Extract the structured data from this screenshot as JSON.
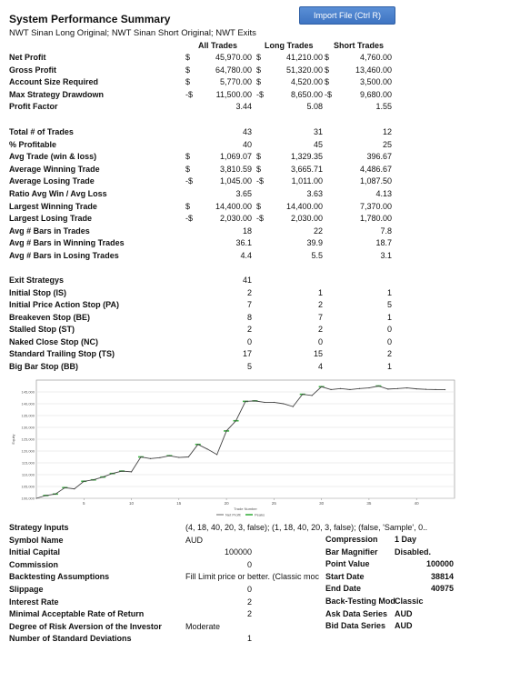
{
  "report": {
    "title": "System Performance Summary",
    "subtitle": "NWT Sinan Long Original; NWT Sinan Short Original; NWT Exits",
    "import_button": "Import  File (Ctrl R)"
  },
  "columns": [
    "All Trades",
    "Long Trades",
    "Short Trades"
  ],
  "summary_rows": [
    {
      "label": "Net Profit",
      "cur": [
        "$",
        "$",
        "$"
      ],
      "all": "45,970.00",
      "long": "41,210.00",
      "short": "4,760.00"
    },
    {
      "label": "Gross Profit",
      "cur": [
        "$",
        "$",
        "$"
      ],
      "all": "64,780.00",
      "long": "51,320.00",
      "short": "13,460.00"
    },
    {
      "label": "Account Size Required",
      "cur": [
        "$",
        "$",
        "$"
      ],
      "all": "5,770.00",
      "long": "4,520.00",
      "short": "3,500.00"
    },
    {
      "label": "Max Strategy Drawdown",
      "cur": [
        "-$",
        "-$",
        "-$"
      ],
      "all": "11,500.00",
      "long": "8,650.00",
      "short": "9,680.00"
    },
    {
      "label": "Profit Factor",
      "cur": [
        "",
        "",
        ""
      ],
      "all": "3.44",
      "long": "5.08",
      "short": "1.55"
    }
  ],
  "trade_rows": [
    {
      "label": "Total # of Trades",
      "cur": [
        "",
        "",
        ""
      ],
      "all": "43",
      "long": "31",
      "short": "12"
    },
    {
      "label": "% Profitable",
      "cur": [
        "",
        "",
        ""
      ],
      "all": "40",
      "long": "45",
      "short": "25"
    },
    {
      "label": "Avg Trade (win & loss)",
      "cur": [
        "$",
        "$",
        ""
      ],
      "all": "1,069.07",
      "long": "1,329.35",
      "short": "396.67"
    },
    {
      "label": "Average Winning Trade",
      "cur": [
        "$",
        "$",
        ""
      ],
      "all": "3,810.59",
      "long": "3,665.71",
      "short": "4,486.67"
    },
    {
      "label": "Average Losing Trade",
      "cur": [
        "-$",
        "-$",
        ""
      ],
      "all": "1,045.00",
      "long": "1,011.00",
      "short": "1,087.50"
    },
    {
      "label": "Ratio Avg Win / Avg Loss",
      "cur": [
        "",
        "",
        ""
      ],
      "all": "3.65",
      "long": "3.63",
      "short": "4.13"
    },
    {
      "label": "Largest Winning Trade",
      "cur": [
        "$",
        "$",
        ""
      ],
      "all": "14,400.00",
      "long": "14,400.00",
      "short": "7,370.00"
    },
    {
      "label": "Largest Losing Trade",
      "cur": [
        "-$",
        "-$",
        ""
      ],
      "all": "2,030.00",
      "long": "2,030.00",
      "short": "1,780.00"
    },
    {
      "label": "Avg # Bars in Trades",
      "cur": [
        "",
        "",
        ""
      ],
      "all": "18",
      "long": "22",
      "short": "7.8"
    },
    {
      "label": "Avg # Bars in Winning Trades",
      "cur": [
        "",
        "",
        ""
      ],
      "all": "36.1",
      "long": "39.9",
      "short": "18.7"
    },
    {
      "label": "Avg # Bars in Losing Trades",
      "cur": [
        "",
        "",
        ""
      ],
      "all": "4.4",
      "long": "5.5",
      "short": "3.1"
    }
  ],
  "exit_rows": [
    {
      "label": "Exit Strategys",
      "all": "41",
      "long": "",
      "short": ""
    },
    {
      "label": "Initial Stop (IS)",
      "all": "2",
      "long": "1",
      "short": "1"
    },
    {
      "label": "Initial Price Action Stop (PA)",
      "all": "7",
      "long": "2",
      "short": "5"
    },
    {
      "label": "Breakeven Stop (BE)",
      "all": "8",
      "long": "7",
      "short": "1"
    },
    {
      "label": "Stalled Stop (ST)",
      "all": "2",
      "long": "2",
      "short": "0"
    },
    {
      "label": "Naked Close Stop (NC)",
      "all": "0",
      "long": "0",
      "short": "0"
    },
    {
      "label": "Standard Trailing Stop (TS)",
      "all": "17",
      "long": "15",
      "short": "2"
    },
    {
      "label": "Big Bar Stop (BB)",
      "all": "5",
      "long": "4",
      "short": "1"
    }
  ],
  "chart_data": {
    "type": "line",
    "xlabel": "Trade Number",
    "ylabel": "Equity",
    "xlim": [
      0,
      44
    ],
    "ylim": [
      100000,
      150000
    ],
    "x_ticks": [
      5,
      10,
      15,
      20,
      25,
      30,
      35,
      40
    ],
    "y_ticks": [
      100000,
      105000,
      110000,
      115000,
      120000,
      125000,
      130000,
      135000,
      140000,
      145000
    ],
    "y_tick_labels": [
      "100,000",
      "105,000",
      "110,000",
      "115,000",
      "120,000",
      "125,000",
      "130,000",
      "135,000",
      "140,000",
      "145,000"
    ],
    "series": [
      {
        "name": "Net Profit",
        "values": [
          100000,
          101200,
          101800,
          104500,
          104000,
          107200,
          107800,
          109000,
          110500,
          111500,
          111200,
          117500,
          116800,
          117200,
          118000,
          117300,
          117500,
          122800,
          120800,
          118500,
          128500,
          132800,
          141000,
          141200,
          140600,
          140600,
          140000,
          138800,
          144000,
          143500,
          147200,
          146000,
          146400,
          146000,
          146400,
          146700,
          147500,
          146200,
          146400,
          146700,
          146300,
          146100,
          146000,
          145970
        ]
      },
      {
        "name": "Peaks",
        "values": [
          100000,
          101200,
          101800,
          104500,
          104500,
          107200,
          107800,
          109000,
          110500,
          111500,
          111500,
          117500,
          117500,
          117500,
          118000,
          118000,
          118000,
          122800,
          122800,
          122800,
          128500,
          132800,
          141000,
          141200,
          141200,
          141200,
          141200,
          141200,
          144000,
          144000,
          147200,
          147200,
          147200,
          147200,
          147200,
          147200,
          147500,
          147500,
          147500,
          147500,
          147500,
          147500,
          147500,
          147500
        ]
      }
    ],
    "legend": [
      "Net Profit",
      "Peaks"
    ],
    "legend_position": "bottom",
    "colors": {
      "line": "#444444",
      "peaks": "#3cb043",
      "grid": "#dddddd"
    }
  },
  "inputs_left": [
    {
      "label": "Strategy Inputs",
      "value": "(4, 18, 40, 20, 3, false); (1, 18, 40, 20, 3, false); (false, 'Sample', 0.."
    },
    {
      "label": "Symbol Name",
      "value": "AUD"
    },
    {
      "label": "Initial Capital",
      "value": "100000"
    },
    {
      "label": "Commission",
      "value": "0"
    },
    {
      "label": "Backtesting Assumptions",
      "value": "Fill Limit price or better. (Classic moc"
    },
    {
      "label": "Slippage",
      "value": "0"
    },
    {
      "label": "Interest Rate",
      "value": "2"
    },
    {
      "label": "Minimal Acceptable Rate of Return",
      "value": "2"
    },
    {
      "label": "Degree of Risk Aversion of the Investor",
      "value": "Moderate"
    },
    {
      "label": "Number of Standard Deviations",
      "value": "1"
    }
  ],
  "inputs_right": [
    {
      "label": "Compression",
      "value": "1 Day"
    },
    {
      "label": "Bar Magnifier",
      "value": "Disabled."
    },
    {
      "label": "Point Value",
      "value": "100000"
    },
    {
      "label": "Start Date",
      "value": "38814"
    },
    {
      "label": "End Date",
      "value": "40975"
    },
    {
      "label": "Back-Testing Mod",
      "value": "Classic"
    },
    {
      "label": "Ask Data Series",
      "value": "AUD"
    },
    {
      "label": "Bid Data Series",
      "value": "AUD"
    }
  ]
}
